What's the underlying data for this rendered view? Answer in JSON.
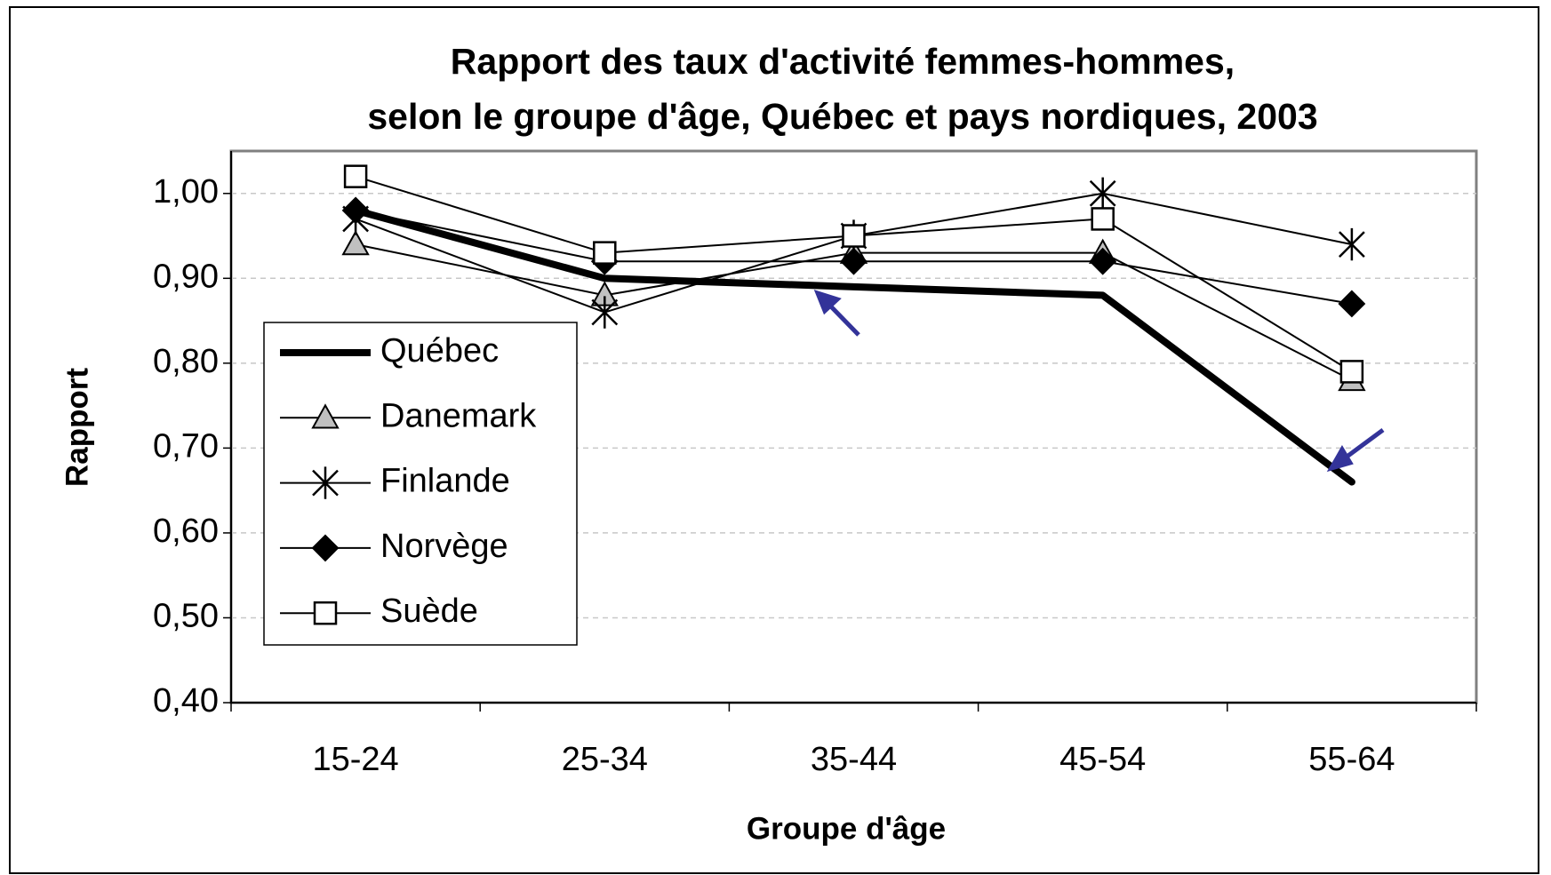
{
  "chart_data": {
    "type": "line",
    "title": [
      "Rapport des taux d'activité femmes-hommes,",
      "selon le groupe d'âge, Québec et pays nordiques, 2003"
    ],
    "x_label": "Groupe d'âge",
    "y_label": "Rapport",
    "categories": [
      "15-24",
      "25-34",
      "35-44",
      "45-54",
      "55-64"
    ],
    "series": [
      {
        "name": "Québec",
        "color": "#000000",
        "marker": "none",
        "values": [
          0.98,
          0.9,
          0.89,
          0.88,
          0.66
        ]
      },
      {
        "name": "Danemark",
        "color": "#000000",
        "marker": "triangle",
        "values": [
          0.94,
          0.88,
          0.93,
          0.93,
          0.78
        ]
      },
      {
        "name": "Finlande",
        "color": "#000000",
        "marker": "star",
        "values": [
          0.97,
          0.86,
          0.95,
          1.0,
          0.94
        ]
      },
      {
        "name": "Norvège",
        "color": "#000000",
        "marker": "diamond",
        "values": [
          0.98,
          0.92,
          0.92,
          0.92,
          0.87
        ]
      },
      {
        "name": "Suède",
        "color": "#000000",
        "marker": "square",
        "values": [
          1.02,
          0.93,
          0.95,
          0.97,
          0.79
        ]
      }
    ],
    "ylim": [
      0.4,
      1.05
    ],
    "yticks": [
      {
        "value": 0.4,
        "label": "0,40"
      },
      {
        "value": 0.5,
        "label": "0,50"
      },
      {
        "value": 0.6,
        "label": "0,60"
      },
      {
        "value": 0.7,
        "label": "0,70"
      },
      {
        "value": 0.8,
        "label": "0,80"
      },
      {
        "value": 0.9,
        "label": "0,90"
      },
      {
        "value": 1.0,
        "label": "1,00"
      }
    ],
    "grid": true,
    "legend": "left"
  }
}
